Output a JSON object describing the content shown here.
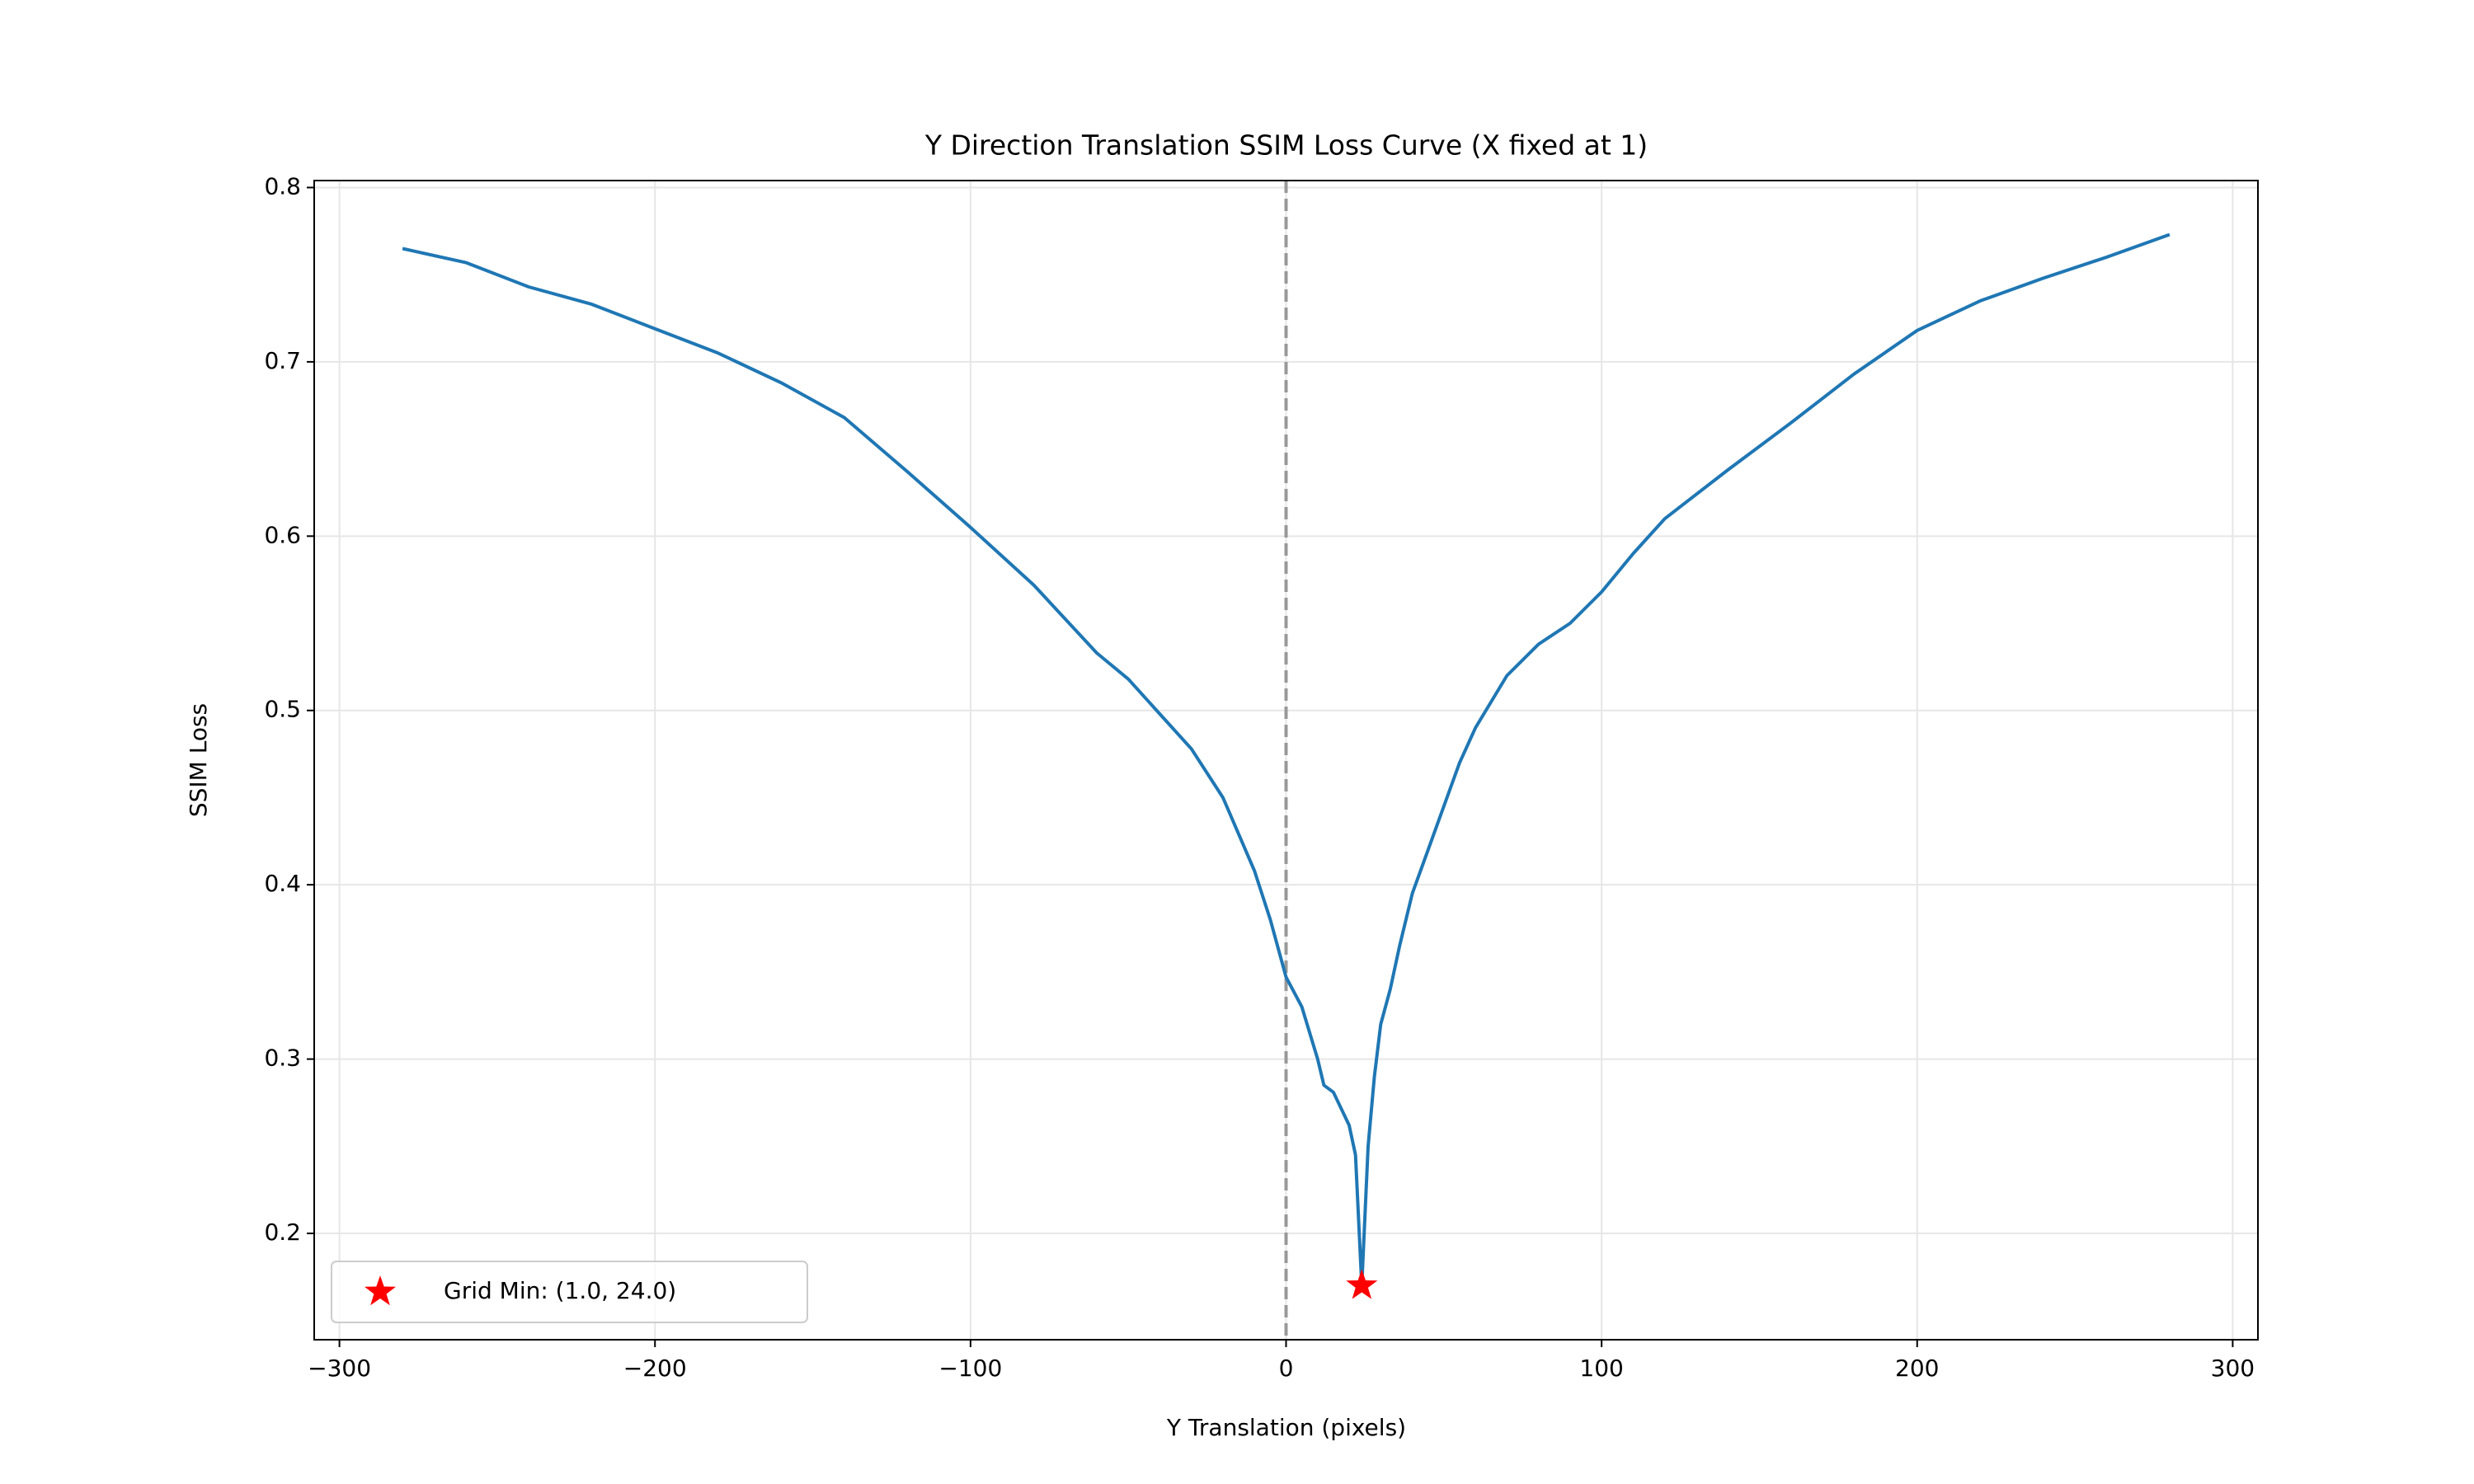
{
  "chart_data": {
    "type": "line",
    "title": "Y Direction Translation SSIM Loss Curve (X fixed at 1)",
    "xlabel": "Y Translation (pixels)",
    "ylabel": "SSIM Loss",
    "x": [
      -280,
      -260,
      -240,
      -220,
      -200,
      -180,
      -160,
      -140,
      -120,
      -100,
      -80,
      -60,
      -50,
      -40,
      -30,
      -20,
      -10,
      -5,
      0,
      5,
      10,
      12,
      15,
      20,
      22,
      24,
      26,
      28,
      30,
      33,
      36,
      40,
      45,
      50,
      55,
      60,
      70,
      80,
      90,
      100,
      110,
      120,
      140,
      160,
      180,
      200,
      220,
      240,
      260,
      280
    ],
    "series": [
      {
        "color": "#1f77b4",
        "values": [
          0.765,
          0.757,
          0.743,
          0.733,
          0.719,
          0.705,
          0.688,
          0.668,
          0.637,
          0.605,
          0.572,
          0.533,
          0.518,
          0.498,
          0.478,
          0.45,
          0.408,
          0.38,
          0.347,
          0.33,
          0.3,
          0.285,
          0.281,
          0.262,
          0.245,
          0.17,
          0.25,
          0.29,
          0.32,
          0.34,
          0.365,
          0.395,
          0.42,
          0.445,
          0.47,
          0.49,
          0.52,
          0.538,
          0.55,
          0.568,
          0.59,
          0.61,
          0.638,
          0.665,
          0.693,
          0.718,
          0.735,
          0.748,
          0.76,
          0.773
        ]
      },
      {
        "name": "Grid Min: (1.0, 24.0)",
        "color": "#ff0000",
        "marker": "star",
        "x": [
          24
        ],
        "values": [
          0.17
        ]
      }
    ],
    "vline": 0,
    "xlim": [
      -308,
      308
    ],
    "xticks": [
      {
        "value": -300,
        "label": "−300"
      },
      {
        "value": -200,
        "label": "−200"
      },
      {
        "value": -100,
        "label": "−100"
      },
      0,
      100,
      200,
      300
    ],
    "ylim": [
      0.139,
      0.804
    ],
    "yticks": [
      0.2,
      0.3,
      0.4,
      0.5,
      0.6,
      0.7,
      0.8
    ],
    "grid": true,
    "legend": "lower left"
  }
}
